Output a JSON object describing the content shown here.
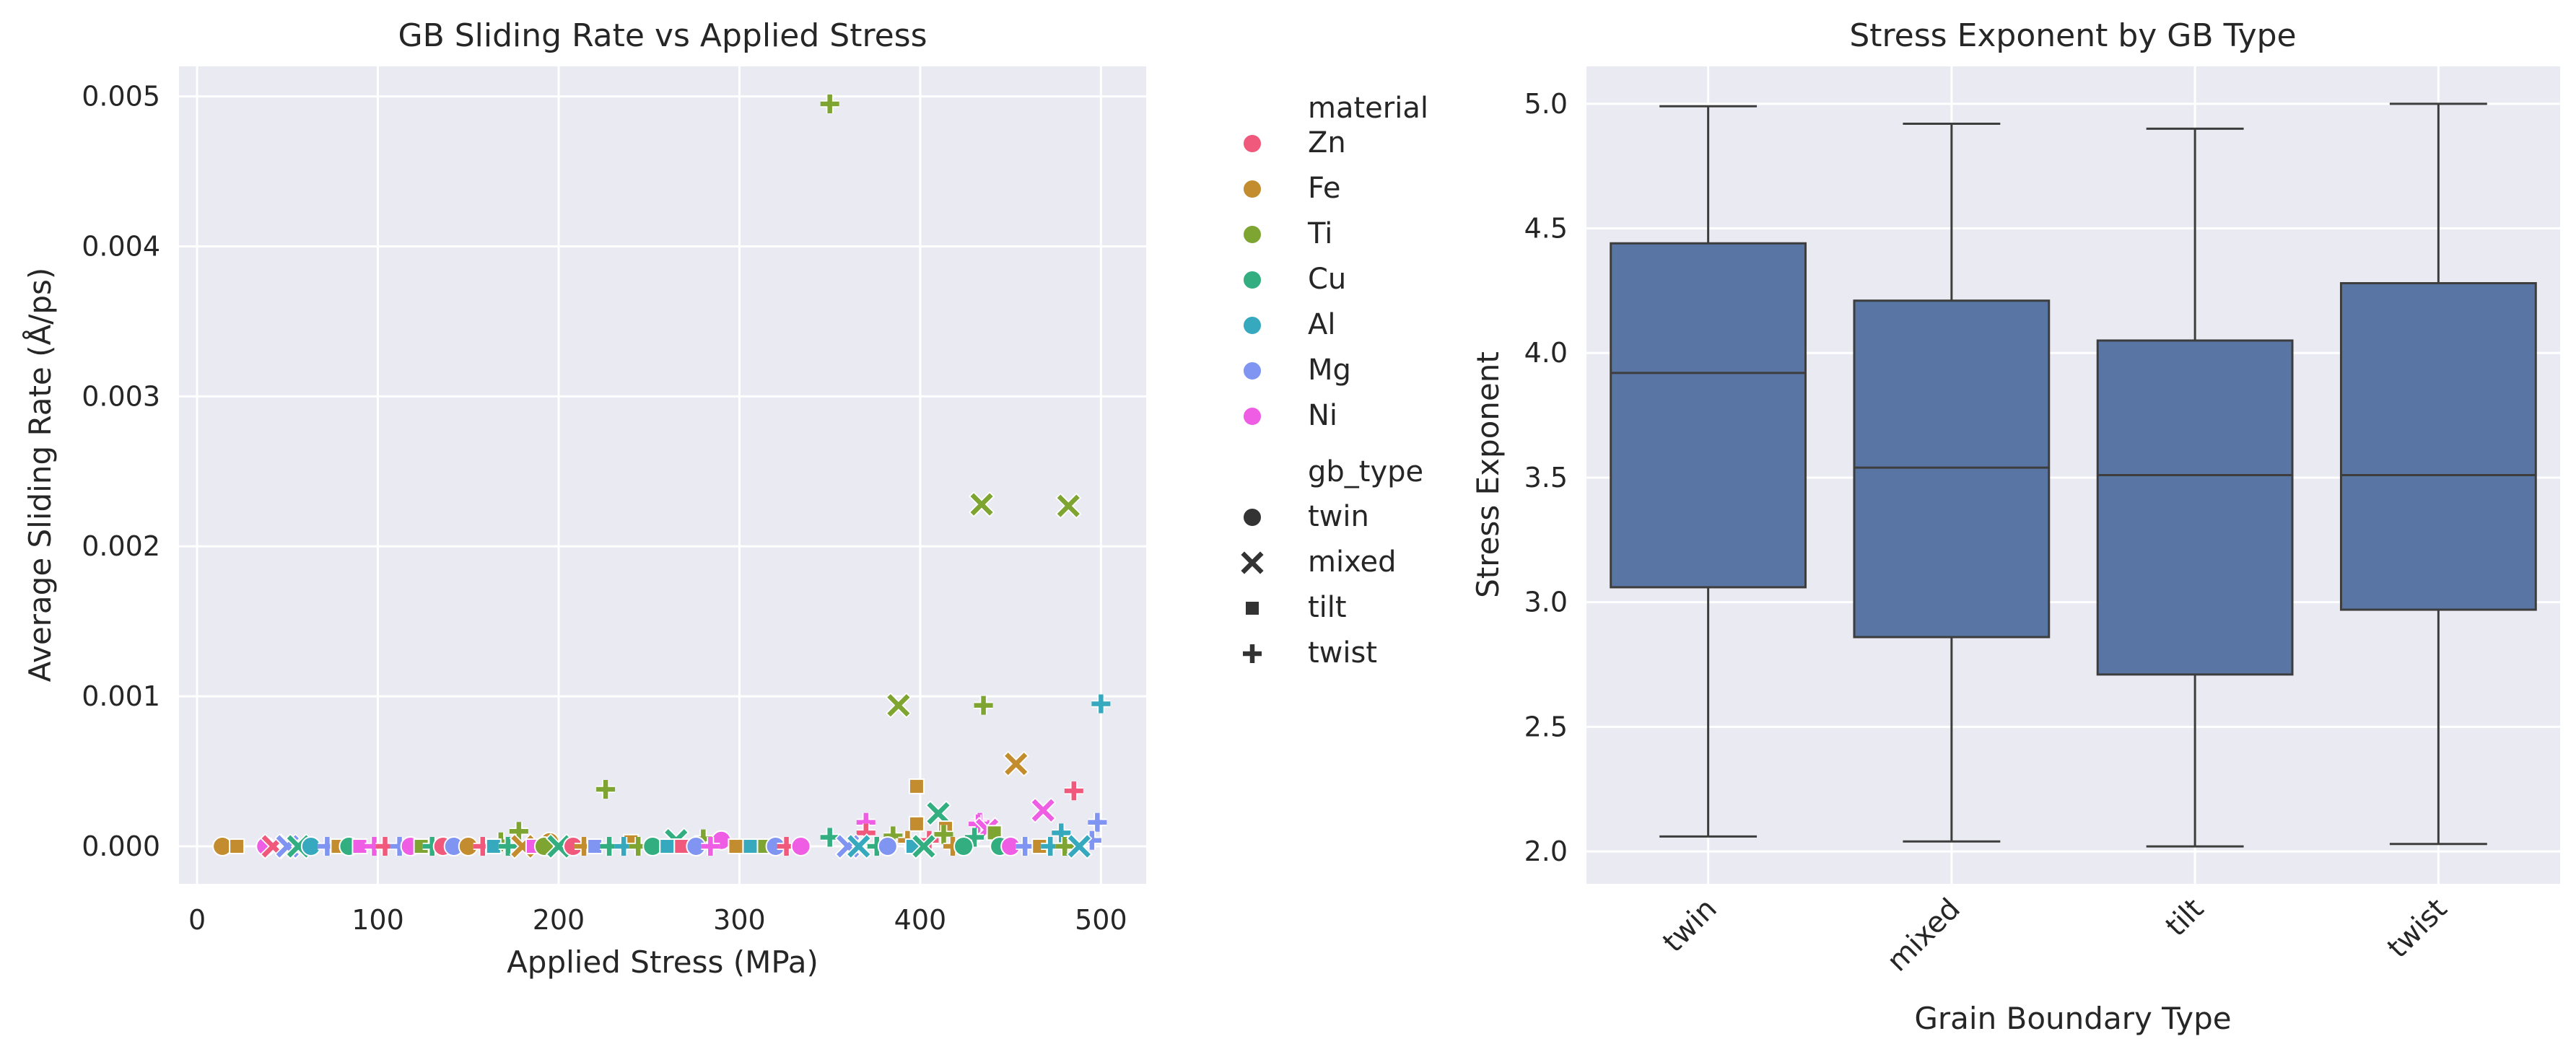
{
  "chart_data": [
    {
      "type": "scatter",
      "title": "GB Sliding Rate vs Applied Stress",
      "xlabel": "Applied Stress (MPa)",
      "ylabel": "Average Sliding Rate (Å/ps)",
      "xlim": [
        -10,
        525
      ],
      "ylim": [
        -0.00025,
        0.0052
      ],
      "xticks": [
        0,
        100,
        200,
        300,
        400,
        500
      ],
      "xtick_labels": [
        "0",
        "100",
        "200",
        "300",
        "400",
        "500"
      ],
      "yticks": [
        0,
        0.001,
        0.002,
        0.003,
        0.004,
        0.005
      ],
      "ytick_labels": [
        "0.000",
        "0.001",
        "0.002",
        "0.003",
        "0.004",
        "0.005"
      ],
      "grid": true,
      "legend": {
        "placement": "outside-right",
        "hue_title": "material",
        "hue_entries": [
          {
            "label": "Zn",
            "color": "#f0587c"
          },
          {
            "label": "Fe",
            "color": "#c38c2f"
          },
          {
            "label": "Ti",
            "color": "#7ea431"
          },
          {
            "label": "Cu",
            "color": "#33ae81"
          },
          {
            "label": "Al",
            "color": "#36a9bf"
          },
          {
            "label": "Mg",
            "color": "#8094f2"
          },
          {
            "label": "Ni",
            "color": "#ee5de3"
          }
        ],
        "style_title": "gb_type",
        "style_entries": [
          {
            "label": "twin",
            "marker": "circle"
          },
          {
            "label": "mixed",
            "marker": "x"
          },
          {
            "label": "tilt",
            "marker": "square"
          },
          {
            "label": "twist",
            "marker": "plus"
          }
        ]
      },
      "points": [
        {
          "x": 350,
          "y": 0.00495,
          "material": "Ti",
          "gb_type": "twist"
        },
        {
          "x": 434,
          "y": 0.00228,
          "material": "Ti",
          "gb_type": "mixed"
        },
        {
          "x": 482,
          "y": 0.00227,
          "material": "Ti",
          "gb_type": "mixed"
        },
        {
          "x": 388,
          "y": 0.00094,
          "material": "Ti",
          "gb_type": "mixed"
        },
        {
          "x": 435,
          "y": 0.00094,
          "material": "Ti",
          "gb_type": "twist"
        },
        {
          "x": 500,
          "y": 0.00095,
          "material": "Al",
          "gb_type": "twist"
        },
        {
          "x": 453,
          "y": 0.00055,
          "material": "Fe",
          "gb_type": "mixed"
        },
        {
          "x": 226,
          "y": 0.00038,
          "material": "Ti",
          "gb_type": "twist"
        },
        {
          "x": 485,
          "y": 0.00037,
          "material": "Zn",
          "gb_type": "twist"
        },
        {
          "x": 398,
          "y": 0.0004,
          "material": "Fe",
          "gb_type": "tilt"
        },
        {
          "x": 468,
          "y": 0.00024,
          "material": "Ni",
          "gb_type": "mixed"
        },
        {
          "x": 410,
          "y": 0.00022,
          "material": "Cu",
          "gb_type": "mixed"
        },
        {
          "x": 498,
          "y": 0.00016,
          "material": "Mg",
          "gb_type": "twist"
        },
        {
          "x": 370,
          "y": 0.00016,
          "material": "Ni",
          "gb_type": "twist"
        },
        {
          "x": 398,
          "y": 0.00015,
          "material": "Fe",
          "gb_type": "tilt"
        },
        {
          "x": 433,
          "y": 0.00016,
          "material": "Ni",
          "gb_type": "twist"
        },
        {
          "x": 432,
          "y": 0.00015,
          "material": "Ni",
          "gb_type": "twist"
        },
        {
          "x": 414,
          "y": 0.00012,
          "material": "Fe",
          "gb_type": "tilt"
        },
        {
          "x": 437,
          "y": 0.00011,
          "material": "Ni",
          "gb_type": "mixed"
        },
        {
          "x": 178,
          "y": 0.0001,
          "material": "Ti",
          "gb_type": "twist"
        },
        {
          "x": 370,
          "y": 9e-05,
          "material": "Zn",
          "gb_type": "twist"
        },
        {
          "x": 441,
          "y": 9e-05,
          "material": "Ti",
          "gb_type": "tilt"
        },
        {
          "x": 478,
          "y": 9e-05,
          "material": "Al",
          "gb_type": "twist"
        },
        {
          "x": 350,
          "y": 6e-05,
          "material": "Cu",
          "gb_type": "twist"
        },
        {
          "x": 385,
          "y": 7e-05,
          "material": "Ti",
          "gb_type": "twist"
        },
        {
          "x": 413,
          "y": 8e-05,
          "material": "Ti",
          "gb_type": "twist"
        },
        {
          "x": 430,
          "y": 6e-05,
          "material": "Cu",
          "gb_type": "twist"
        },
        {
          "x": 405,
          "y": 4e-05,
          "material": "Zn",
          "gb_type": "twist"
        },
        {
          "x": 495,
          "y": 4e-05,
          "material": "Mg",
          "gb_type": "twist"
        },
        {
          "x": 393,
          "y": 4e-05,
          "material": "Fe",
          "gb_type": "twist"
        },
        {
          "x": 280,
          "y": 5e-05,
          "material": "Ti",
          "gb_type": "twist"
        },
        {
          "x": 265,
          "y": 4e-05,
          "material": "Cu",
          "gb_type": "mixed"
        },
        {
          "x": 290,
          "y": 4e-05,
          "material": "Ni",
          "gb_type": "twin"
        },
        {
          "x": 240,
          "y": 3e-05,
          "material": "Fe",
          "gb_type": "tilt"
        },
        {
          "x": 195,
          "y": 3e-05,
          "material": "Fe",
          "gb_type": "twin"
        },
        {
          "x": 168,
          "y": 3e-05,
          "material": "Ti",
          "gb_type": "twist"
        },
        {
          "x": 14,
          "y": 0.0,
          "material": "Fe",
          "gb_type": "twin"
        },
        {
          "x": 22,
          "y": 0.0,
          "material": "Fe",
          "gb_type": "tilt"
        },
        {
          "x": 38,
          "y": 0.0,
          "material": "Ni",
          "gb_type": "twin"
        },
        {
          "x": 42,
          "y": 0.0,
          "material": "Zn",
          "gb_type": "mixed"
        },
        {
          "x": 50,
          "y": 0.0,
          "material": "Mg",
          "gb_type": "mixed"
        },
        {
          "x": 56,
          "y": 0.0,
          "material": "Cu",
          "gb_type": "mixed"
        },
        {
          "x": 63,
          "y": 0.0,
          "material": "Al",
          "gb_type": "twin"
        },
        {
          "x": 72,
          "y": 0.0,
          "material": "Mg",
          "gb_type": "twist"
        },
        {
          "x": 78,
          "y": 0.0,
          "material": "Fe",
          "gb_type": "tilt"
        },
        {
          "x": 84,
          "y": 0.0,
          "material": "Cu",
          "gb_type": "twin"
        },
        {
          "x": 90,
          "y": 0.0,
          "material": "Ni",
          "gb_type": "tilt"
        },
        {
          "x": 98,
          "y": 0.0,
          "material": "Ni",
          "gb_type": "twist"
        },
        {
          "x": 104,
          "y": 0.0,
          "material": "Zn",
          "gb_type": "twist"
        },
        {
          "x": 112,
          "y": 0.0,
          "material": "Mg",
          "gb_type": "twist"
        },
        {
          "x": 118,
          "y": 0.0,
          "material": "Ni",
          "gb_type": "twin"
        },
        {
          "x": 124,
          "y": 0.0,
          "material": "Ti",
          "gb_type": "tilt"
        },
        {
          "x": 130,
          "y": 0.0,
          "material": "Cu",
          "gb_type": "twist"
        },
        {
          "x": 136,
          "y": 0.0,
          "material": "Zn",
          "gb_type": "twin"
        },
        {
          "x": 142,
          "y": 0.0,
          "material": "Mg",
          "gb_type": "twin"
        },
        {
          "x": 150,
          "y": 0.0,
          "material": "Fe",
          "gb_type": "twin"
        },
        {
          "x": 158,
          "y": 0.0,
          "material": "Zn",
          "gb_type": "twist"
        },
        {
          "x": 164,
          "y": 0.0,
          "material": "Al",
          "gb_type": "tilt"
        },
        {
          "x": 172,
          "y": 0.0,
          "material": "Cu",
          "gb_type": "twist"
        },
        {
          "x": 180,
          "y": 0.0,
          "material": "Fe",
          "gb_type": "mixed"
        },
        {
          "x": 186,
          "y": 0.0,
          "material": "Ni",
          "gb_type": "tilt"
        },
        {
          "x": 192,
          "y": 0.0,
          "material": "Ti",
          "gb_type": "twin"
        },
        {
          "x": 200,
          "y": 0.0,
          "material": "Cu",
          "gb_type": "mixed"
        },
        {
          "x": 208,
          "y": 0.0,
          "material": "Zn",
          "gb_type": "twin"
        },
        {
          "x": 214,
          "y": 0.0,
          "material": "Fe",
          "gb_type": "twist"
        },
        {
          "x": 220,
          "y": 0.0,
          "material": "Mg",
          "gb_type": "tilt"
        },
        {
          "x": 228,
          "y": 0.0,
          "material": "Cu",
          "gb_type": "twist"
        },
        {
          "x": 236,
          "y": 0.0,
          "material": "Al",
          "gb_type": "twist"
        },
        {
          "x": 244,
          "y": 0.0,
          "material": "Ti",
          "gb_type": "twist"
        },
        {
          "x": 252,
          "y": 0.0,
          "material": "Cu",
          "gb_type": "twin"
        },
        {
          "x": 260,
          "y": 0.0,
          "material": "Al",
          "gb_type": "tilt"
        },
        {
          "x": 268,
          "y": 0.0,
          "material": "Zn",
          "gb_type": "tilt"
        },
        {
          "x": 276,
          "y": 0.0,
          "material": "Mg",
          "gb_type": "twin"
        },
        {
          "x": 284,
          "y": 0.0,
          "material": "Ni",
          "gb_type": "twist"
        },
        {
          "x": 298,
          "y": 0.0,
          "material": "Fe",
          "gb_type": "tilt"
        },
        {
          "x": 306,
          "y": 0.0,
          "material": "Al",
          "gb_type": "tilt"
        },
        {
          "x": 314,
          "y": 0.0,
          "material": "Ti",
          "gb_type": "tilt"
        },
        {
          "x": 320,
          "y": 0.0,
          "material": "Mg",
          "gb_type": "twin"
        },
        {
          "x": 326,
          "y": 0.0,
          "material": "Zn",
          "gb_type": "twist"
        },
        {
          "x": 334,
          "y": 0.0,
          "material": "Ni",
          "gb_type": "twin"
        },
        {
          "x": 360,
          "y": 0.0,
          "material": "Mg",
          "gb_type": "mixed"
        },
        {
          "x": 366,
          "y": 0.0,
          "material": "Al",
          "gb_type": "mixed"
        },
        {
          "x": 376,
          "y": 0.0,
          "material": "Cu",
          "gb_type": "twist"
        },
        {
          "x": 382,
          "y": 0.0,
          "material": "Mg",
          "gb_type": "twin"
        },
        {
          "x": 396,
          "y": 0.0,
          "material": "Al",
          "gb_type": "tilt"
        },
        {
          "x": 402,
          "y": 0.0,
          "material": "Cu",
          "gb_type": "mixed"
        },
        {
          "x": 418,
          "y": 0.0,
          "material": "Fe",
          "gb_type": "twist"
        },
        {
          "x": 424,
          "y": 0.0,
          "material": "Cu",
          "gb_type": "twin"
        },
        {
          "x": 444,
          "y": 0.0,
          "material": "Cu",
          "gb_type": "twin"
        },
        {
          "x": 450,
          "y": 0.0,
          "material": "Ni",
          "gb_type": "twin"
        },
        {
          "x": 458,
          "y": 0.0,
          "material": "Mg",
          "gb_type": "twist"
        },
        {
          "x": 466,
          "y": 0.0,
          "material": "Fe",
          "gb_type": "tilt"
        },
        {
          "x": 472,
          "y": 0.0,
          "material": "Al",
          "gb_type": "twist"
        },
        {
          "x": 480,
          "y": 0.0,
          "material": "Ti",
          "gb_type": "twist"
        },
        {
          "x": 488,
          "y": 0.0,
          "material": "Al",
          "gb_type": "mixed"
        }
      ]
    },
    {
      "type": "box",
      "title": "Stress Exponent by GB Type",
      "xlabel": "Grain Boundary Type",
      "ylabel": "Stress Exponent",
      "categories": [
        "twin",
        "mixed",
        "tilt",
        "twist"
      ],
      "ylim": [
        1.87,
        5.15
      ],
      "yticks": [
        2.0,
        2.5,
        3.0,
        3.5,
        4.0,
        4.5,
        5.0
      ],
      "ytick_labels": [
        "2.0",
        "2.5",
        "3.0",
        "3.5",
        "4.0",
        "4.5",
        "5.0"
      ],
      "grid": true,
      "box_color": "#5875a4",
      "boxes": [
        {
          "category": "twin",
          "min": 2.06,
          "q1": 3.06,
          "median": 3.92,
          "q3": 4.44,
          "max": 4.99
        },
        {
          "category": "mixed",
          "min": 2.04,
          "q1": 2.86,
          "median": 3.54,
          "q3": 4.21,
          "max": 4.92
        },
        {
          "category": "tilt",
          "min": 2.02,
          "q1": 2.71,
          "median": 3.51,
          "q3": 4.05,
          "max": 4.9
        },
        {
          "category": "twist",
          "min": 2.03,
          "q1": 2.97,
          "median": 3.51,
          "q3": 4.28,
          "max": 5.0
        }
      ]
    }
  ]
}
